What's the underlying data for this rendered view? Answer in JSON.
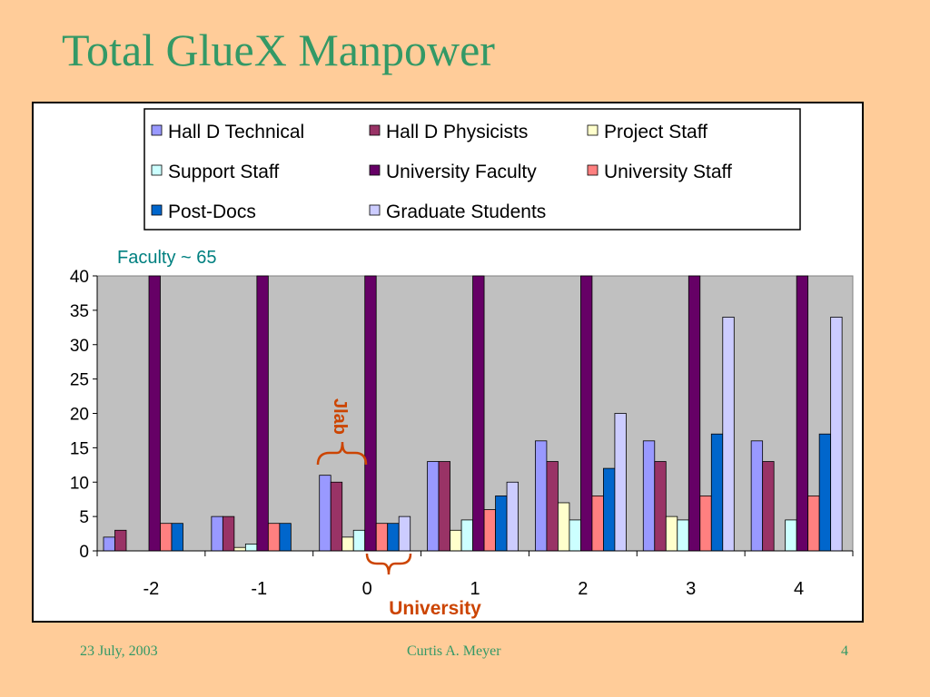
{
  "slide": {
    "title": "Total GlueX Manpower",
    "footer": {
      "date": "23 July, 2003",
      "author": "Curtis A. Meyer",
      "page": "4"
    },
    "background_color": "#ffcc99",
    "title_color": "#339966"
  },
  "chart_data": {
    "type": "bar",
    "title": "",
    "xlabel": "",
    "ylabel": "",
    "categories": [
      "-2",
      "-1",
      "0",
      "1",
      "2",
      "3",
      "4"
    ],
    "ylim": [
      0,
      40
    ],
    "yticks": [
      0,
      5,
      10,
      15,
      20,
      25,
      30,
      35,
      40
    ],
    "grid": false,
    "plot_background": "#c0c0c0",
    "legend_position": "top",
    "series": [
      {
        "name": "Hall D Technical",
        "color": "#9999ff",
        "values": [
          2,
          5,
          11,
          13,
          16,
          16,
          16
        ]
      },
      {
        "name": "Hall D Physicists",
        "color": "#993366",
        "values": [
          3,
          5,
          10,
          13,
          13,
          13,
          13
        ]
      },
      {
        "name": "Project Staff",
        "color": "#ffffcc",
        "values": [
          0,
          0.5,
          2,
          3,
          7,
          5,
          0
        ]
      },
      {
        "name": "Support Staff",
        "color": "#ccffff",
        "values": [
          0,
          1,
          3,
          4.5,
          4.5,
          4.5,
          4.5
        ]
      },
      {
        "name": "University Faculty",
        "color": "#660066",
        "values": [
          65,
          65,
          65,
          65,
          65,
          65,
          65
        ]
      },
      {
        "name": "University Staff",
        "color": "#ff8080",
        "values": [
          4,
          4,
          4,
          6,
          8,
          8,
          8
        ]
      },
      {
        "name": "Post-Docs",
        "color": "#0066cc",
        "values": [
          4,
          4,
          4,
          8,
          12,
          17,
          17
        ]
      },
      {
        "name": "Graduate Students",
        "color": "#ccccff",
        "values": [
          0,
          0,
          5,
          10,
          20,
          34,
          34
        ]
      }
    ],
    "annotations": {
      "faculty_note": "Faculty ~ 65",
      "jlab_label": "Jlab",
      "university_label": "University",
      "note_color": "#008080",
      "bracket_color": "#cc4400"
    }
  }
}
